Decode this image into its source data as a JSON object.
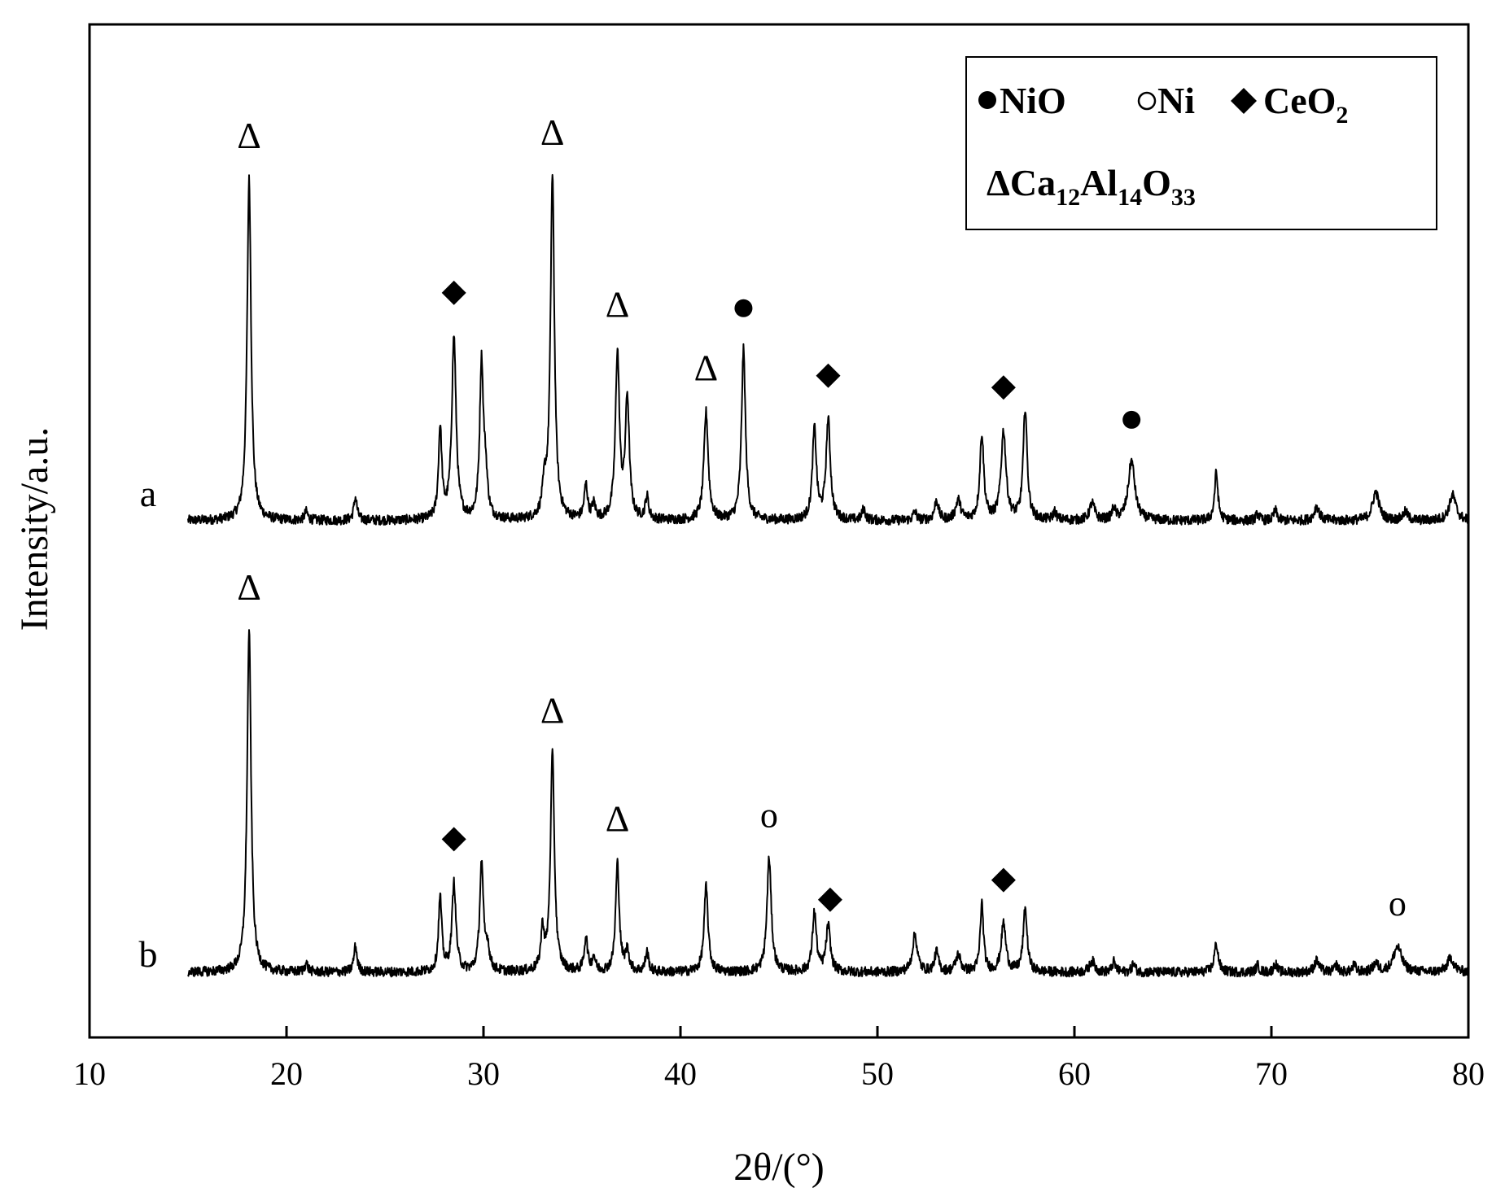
{
  "chart_data": {
    "type": "line",
    "xlabel": "2θ/(°)",
    "ylabel": "Intensity/a.u.",
    "xlim": [
      10,
      80
    ],
    "xticks": [
      10,
      20,
      30,
      40,
      50,
      60,
      70,
      80
    ],
    "grid": false,
    "legend_position": "top-right",
    "legend": [
      {
        "symbol": "filled-circle",
        "label": "NiO"
      },
      {
        "symbol": "open-circle",
        "label": "Ni"
      },
      {
        "symbol": "filled-diamond",
        "label": "CeO",
        "sub": "2"
      },
      {
        "symbol": "triangle",
        "label": "Ca",
        "parts": [
          [
            "Ca",
            "12"
          ],
          [
            "Al",
            "14"
          ],
          [
            "O",
            "33"
          ]
        ]
      }
    ],
    "series": [
      {
        "name": "a",
        "x_start": 15,
        "x_end": 80,
        "peaks": [
          [
            18.1,
            600,
            0.12
          ],
          [
            21.0,
            15,
            0.1
          ],
          [
            23.5,
            40,
            0.1
          ],
          [
            27.8,
            160,
            0.1
          ],
          [
            28.5,
            320,
            0.13
          ],
          [
            29.9,
            270,
            0.11
          ],
          [
            30.1,
            70,
            0.12
          ],
          [
            33.1,
            50,
            0.12
          ],
          [
            33.5,
            600,
            0.12
          ],
          [
            35.2,
            60,
            0.1
          ],
          [
            35.6,
            25,
            0.1
          ],
          [
            36.8,
            290,
            0.12
          ],
          [
            37.3,
            210,
            0.12
          ],
          [
            38.3,
            40,
            0.1
          ],
          [
            41.3,
            190,
            0.13
          ],
          [
            43.2,
            300,
            0.12
          ],
          [
            46.8,
            160,
            0.12
          ],
          [
            47.5,
            175,
            0.13
          ],
          [
            49.3,
            20,
            0.1
          ],
          [
            51.9,
            15,
            0.1
          ],
          [
            53.0,
            35,
            0.12
          ],
          [
            54.1,
            35,
            0.15
          ],
          [
            55.3,
            150,
            0.12
          ],
          [
            56.4,
            155,
            0.15
          ],
          [
            57.5,
            195,
            0.12
          ],
          [
            59.0,
            15,
            0.1
          ],
          [
            60.9,
            30,
            0.15
          ],
          [
            62.0,
            20,
            0.1
          ],
          [
            62.9,
            105,
            0.2
          ],
          [
            67.2,
            85,
            0.1
          ],
          [
            69.3,
            12,
            0.1
          ],
          [
            70.2,
            18,
            0.1
          ],
          [
            72.3,
            25,
            0.15
          ],
          [
            75.3,
            50,
            0.2
          ],
          [
            76.8,
            15,
            0.15
          ],
          [
            79.2,
            45,
            0.2
          ]
        ],
        "annotations": [
          {
            "x": 18.1,
            "marker": "triangle"
          },
          {
            "x": 28.5,
            "marker": "filled-diamond"
          },
          {
            "x": 33.5,
            "marker": "triangle"
          },
          {
            "x": 36.8,
            "marker": "triangle"
          },
          {
            "x": 41.3,
            "marker": "triangle"
          },
          {
            "x": 43.2,
            "marker": "filled-circle"
          },
          {
            "x": 47.5,
            "marker": "filled-diamond"
          },
          {
            "x": 56.4,
            "marker": "filled-diamond"
          },
          {
            "x": 62.9,
            "marker": "filled-circle"
          }
        ]
      },
      {
        "name": "b",
        "x_start": 15,
        "x_end": 80,
        "peaks": [
          [
            18.1,
            600,
            0.12
          ],
          [
            21.0,
            15,
            0.1
          ],
          [
            23.5,
            45,
            0.1
          ],
          [
            27.8,
            130,
            0.1
          ],
          [
            28.5,
            155,
            0.12
          ],
          [
            29.9,
            190,
            0.11
          ],
          [
            30.2,
            40,
            0.12
          ],
          [
            33.0,
            70,
            0.1
          ],
          [
            33.5,
            380,
            0.12
          ],
          [
            35.2,
            60,
            0.1
          ],
          [
            35.6,
            25,
            0.1
          ],
          [
            36.8,
            190,
            0.11
          ],
          [
            37.3,
            35,
            0.12
          ],
          [
            38.3,
            35,
            0.1
          ],
          [
            41.3,
            150,
            0.12
          ],
          [
            44.5,
            200,
            0.13
          ],
          [
            46.8,
            105,
            0.12
          ],
          [
            47.5,
            80,
            0.13
          ],
          [
            51.9,
            65,
            0.15
          ],
          [
            53.0,
            35,
            0.12
          ],
          [
            54.1,
            30,
            0.15
          ],
          [
            55.3,
            120,
            0.1
          ],
          [
            56.4,
            85,
            0.14
          ],
          [
            57.5,
            110,
            0.12
          ],
          [
            60.9,
            20,
            0.15
          ],
          [
            62.0,
            18,
            0.1
          ],
          [
            63.0,
            15,
            0.1
          ],
          [
            67.2,
            50,
            0.12
          ],
          [
            69.3,
            12,
            0.1
          ],
          [
            70.2,
            15,
            0.1
          ],
          [
            72.3,
            20,
            0.15
          ],
          [
            73.3,
            12,
            0.1
          ],
          [
            74.2,
            12,
            0.1
          ],
          [
            75.3,
            15,
            0.15
          ],
          [
            76.4,
            45,
            0.25
          ],
          [
            79.1,
            25,
            0.2
          ]
        ],
        "annotations": [
          {
            "x": 18.1,
            "marker": "triangle"
          },
          {
            "x": 28.5,
            "marker": "filled-diamond"
          },
          {
            "x": 33.5,
            "marker": "triangle"
          },
          {
            "x": 36.8,
            "marker": "triangle"
          },
          {
            "x": 44.5,
            "marker": "open-circle"
          },
          {
            "x": 47.6,
            "marker": "filled-diamond"
          },
          {
            "x": 56.4,
            "marker": "filled-diamond"
          },
          {
            "x": 76.4,
            "marker": "open-circle"
          }
        ]
      }
    ]
  },
  "markers": {
    "triangle": "Δ",
    "open-circle": "o",
    "filled-circle-icon": "black-circle",
    "filled-diamond-icon": "black-diamond"
  }
}
